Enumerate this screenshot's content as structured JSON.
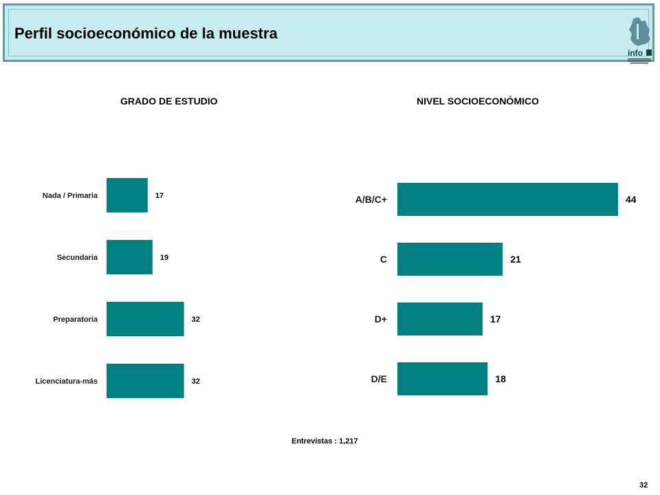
{
  "header": {
    "title": "Perfil socioeconómico de la muestra",
    "logo_text": "info"
  },
  "colors": {
    "bar": "#008080",
    "header_bg": "#c6ecef",
    "header_border": "#5a9ea5"
  },
  "chart_data": [
    {
      "type": "bar",
      "orientation": "horizontal",
      "title": "GRADO DE ESTUDIO",
      "categories": [
        "Nada / Primaria",
        "Secundaria",
        "Preparatoria",
        "Licenciatura-más"
      ],
      "values": [
        17,
        19,
        32,
        32
      ],
      "xlim": [
        0,
        54
      ]
    },
    {
      "type": "bar",
      "orientation": "horizontal",
      "title": "NIVEL SOCIOECONÓMICO",
      "categories": [
        "A/B/C+",
        "C",
        "D+",
        "D/E"
      ],
      "values": [
        44,
        21,
        17,
        18
      ],
      "xlim": [
        0,
        44
      ]
    }
  ],
  "footer": {
    "note": "Entrevistas : 1,217",
    "page_number": "32"
  }
}
